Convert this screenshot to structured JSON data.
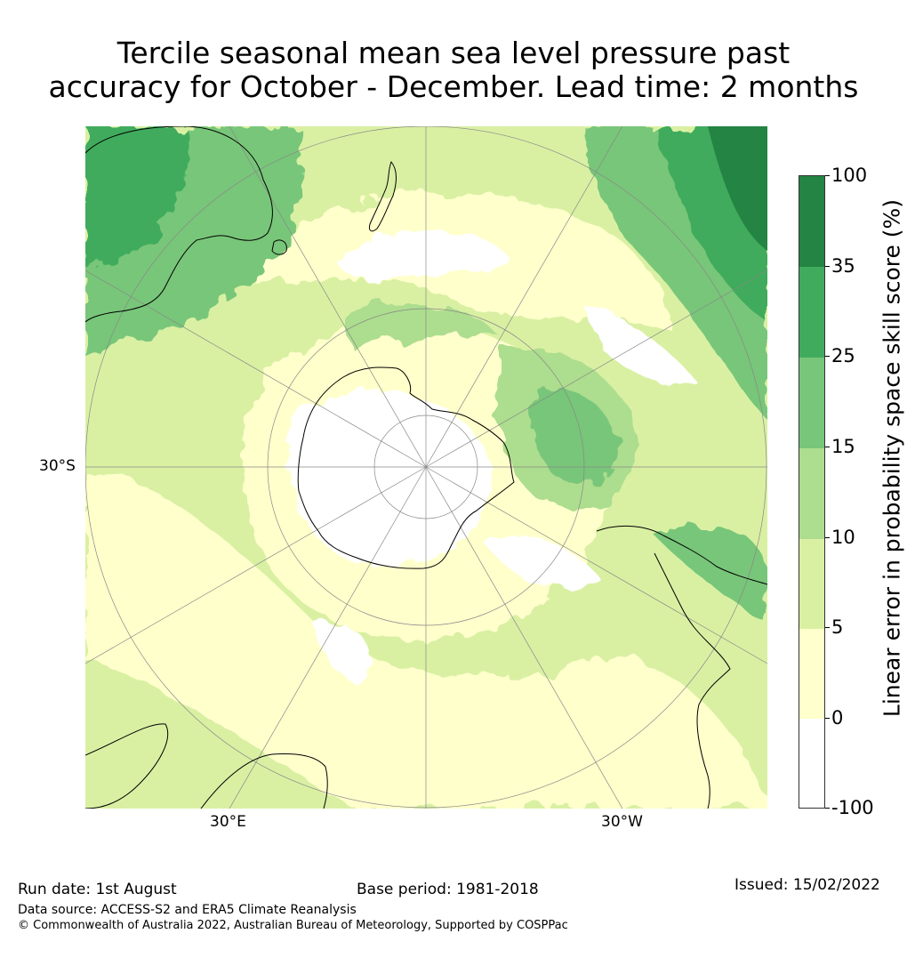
{
  "title": {
    "line1": "Tercile seasonal mean sea level pressure past",
    "line2": "accuracy for October - December. Lead time: 2 months"
  },
  "map": {
    "projection": "south-polar-stereographic",
    "lat_labels": [
      "30°S"
    ],
    "lon_labels": [
      "30°E",
      "30°W"
    ],
    "colors": {
      "c_neg": "#ffffff",
      "c0": "#ffffcc",
      "c5": "#d9f0a3",
      "c10": "#addd8e",
      "c15": "#78c679",
      "c25": "#41ab5d",
      "c35": "#238443",
      "coast": "#000000"
    }
  },
  "colorbar": {
    "label": "Linear error in probability space skill score (%)",
    "ticks": [
      "100",
      "35",
      "25",
      "15",
      "10",
      "5",
      "0",
      "-100"
    ],
    "bins": [
      {
        "from": "35",
        "to": "100",
        "color": "#238443"
      },
      {
        "from": "25",
        "to": "35",
        "color": "#41ab5d"
      },
      {
        "from": "15",
        "to": "25",
        "color": "#78c679"
      },
      {
        "from": "10",
        "to": "15",
        "color": "#addd8e"
      },
      {
        "from": "5",
        "to": "10",
        "color": "#d9f0a3"
      },
      {
        "from": "0",
        "to": "5",
        "color": "#ffffcc"
      },
      {
        "from": "-100",
        "to": "0",
        "color": "#ffffff"
      }
    ]
  },
  "footer": {
    "run_date": "Run date: 1st August",
    "base_period": "Base period: 1981-2018",
    "issued": "Issued: 15/02/2022",
    "data_source": "Data source: ACCESS-S2 and ERA5 Climate Reanalysis",
    "copyright": "© Commonwealth of Australia 2022, Australian Bureau of Meteorology, Supported by COSPPac"
  }
}
